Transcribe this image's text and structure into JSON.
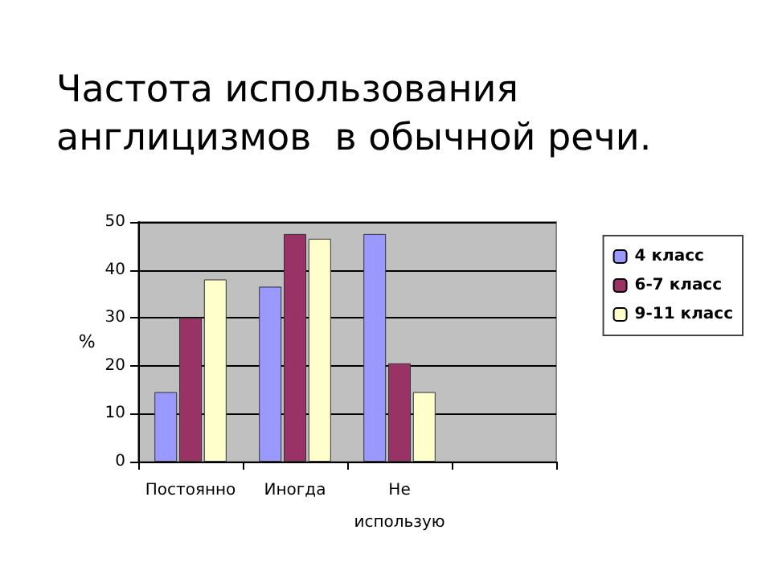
{
  "chart_data": {
    "type": "bar",
    "title": "Частота использования\nанглицизмов  в обычной речи.",
    "ylabel": "%",
    "categories": [
      "Постоянно",
      "Иногда",
      "Не\nиспользую",
      null
    ],
    "series": [
      {
        "name": "4 класс",
        "color": "#9999ff",
        "values": [
          14.5,
          36.5,
          47.5,
          null
        ]
      },
      {
        "name": "6-7 класс",
        "color": "#993366",
        "values": [
          30,
          47.5,
          20.5,
          null
        ]
      },
      {
        "name": "9-11 класс",
        "color": "#ffffcc",
        "values": [
          38,
          46.5,
          14.5,
          null
        ]
      }
    ],
    "ylim": [
      0,
      50
    ],
    "yticks": [
      0,
      10,
      20,
      30,
      40,
      50
    ],
    "grid": "y",
    "legend": "right"
  }
}
